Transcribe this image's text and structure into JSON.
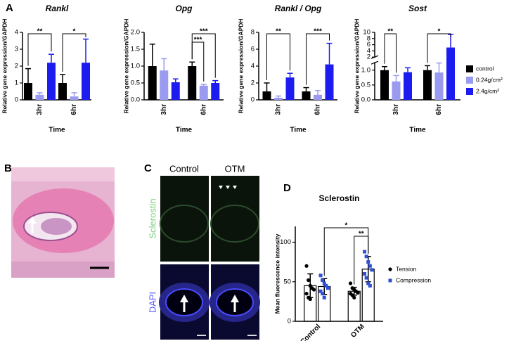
{
  "panel_labels": [
    "A",
    "B",
    "C",
    "D"
  ],
  "panel_c": {
    "columns": [
      "Control",
      "OTM"
    ],
    "rows": [
      "Sclerostin",
      "DAPI"
    ]
  },
  "chart_data": [
    {
      "type": "bar",
      "title": "Rankl",
      "y_label": "Relative gene expression/GAPDH",
      "x_label": "Time",
      "categories": [
        "3hr",
        "6hr"
      ],
      "series": [
        {
          "color": "#000000",
          "values": [
            1.0,
            1.0
          ],
          "errors": [
            0.85,
            0.5
          ]
        },
        {
          "color": "#9a9af0",
          "values": [
            0.3,
            0.2
          ],
          "errors": [
            0.12,
            0.22
          ]
        },
        {
          "color": "#1c1cf0",
          "values": [
            2.2,
            2.2
          ],
          "errors": [
            0.5,
            1.4
          ]
        }
      ],
      "ylim": [
        0,
        4
      ],
      "yticks": [
        0,
        1,
        2,
        3,
        4
      ],
      "annotations": [
        {
          "text": "**",
          "from": [
            0,
            0
          ],
          "to": [
            0,
            2
          ]
        },
        {
          "text": "*",
          "from": [
            1,
            0
          ],
          "to": [
            1,
            2
          ]
        }
      ]
    },
    {
      "type": "bar",
      "title": "Opg",
      "y_label": "Relative gene expression/GAPDH",
      "x_label": "Time",
      "categories": [
        "3hr",
        "6hr"
      ],
      "series": [
        {
          "color": "#000000",
          "values": [
            1.0,
            1.0
          ],
          "errors": [
            0.65,
            0.12
          ]
        },
        {
          "color": "#9a9af0",
          "values": [
            0.87,
            0.42
          ],
          "errors": [
            0.35,
            0.04
          ]
        },
        {
          "color": "#1c1cf0",
          "values": [
            0.52,
            0.5
          ],
          "errors": [
            0.1,
            0.07
          ]
        }
      ],
      "ylim": [
        0,
        2
      ],
      "yticks": [
        {
          "value": 0,
          "label": "0.0"
        },
        {
          "value": 0.5,
          "label": "0.5"
        },
        {
          "value": 1,
          "label": "1.0"
        },
        {
          "value": 1.5,
          "label": "1.5"
        },
        {
          "value": 2,
          "label": "2.0"
        }
      ],
      "annotations": [
        {
          "text": "***",
          "from": [
            1,
            0
          ],
          "to": [
            1,
            2
          ]
        },
        {
          "text": "***",
          "from": [
            1,
            0
          ],
          "to": [
            1,
            1
          ]
        }
      ]
    },
    {
      "type": "bar",
      "title": "Rankl / Opg",
      "y_label": "Relative gene expression/GAPDH",
      "x_label": "Time",
      "categories": [
        "3hr",
        "6hr"
      ],
      "series": [
        {
          "color": "#000000",
          "values": [
            1.0,
            1.0
          ],
          "errors": [
            1.0,
            0.45
          ]
        },
        {
          "color": "#9a9af0",
          "values": [
            0.25,
            0.6
          ],
          "errors": [
            0.2,
            0.5
          ]
        },
        {
          "color": "#1c1cf0",
          "values": [
            2.65,
            4.2
          ],
          "errors": [
            0.5,
            2.5
          ]
        }
      ],
      "ylim": [
        0,
        8
      ],
      "yticks": [
        0,
        2,
        4,
        6,
        8
      ],
      "annotations": [
        {
          "text": "**",
          "from": [
            0,
            0
          ],
          "to": [
            0,
            2
          ]
        },
        {
          "text": "***",
          "from": [
            1,
            0
          ],
          "to": [
            1,
            2
          ]
        }
      ]
    },
    {
      "type": "bar",
      "title": "Sost",
      "y_label": "Relative gene expression/GAPDH",
      "x_label": "Time",
      "categories": [
        "3hr",
        "6hr"
      ],
      "series": [
        {
          "name": "control",
          "color": "#000000",
          "values": [
            1.0,
            1.0
          ],
          "errors": [
            0.12,
            0.15
          ]
        },
        {
          "name": "0.24g/cm²",
          "color": "#9a9af0",
          "values": [
            0.62,
            0.92
          ],
          "errors": [
            0.2,
            0.32
          ]
        },
        {
          "name": "2.4g/cm²",
          "color": "#1c1cf0",
          "values": [
            0.93,
            5.1
          ],
          "errors": [
            0.15,
            4.2
          ]
        }
      ],
      "ylim": [
        0,
        10
      ],
      "ybreak": [
        1.25,
        2
      ],
      "yticks": [
        {
          "value": 0,
          "label": "0.0"
        },
        {
          "value": 0.5,
          "label": "0.5"
        },
        {
          "value": 1,
          "label": "1.0"
        },
        2,
        4,
        6,
        8,
        10
      ],
      "legend": "right",
      "annotations": [
        {
          "text": "**",
          "from": [
            0,
            0
          ],
          "to": [
            0,
            1
          ]
        },
        {
          "text": "*",
          "from": [
            1,
            0
          ],
          "to": [
            1,
            2
          ]
        }
      ]
    },
    {
      "type": "bar",
      "title": "Sclerostin",
      "y_label": "Mean fluorescence intensity",
      "categories": [
        "Control",
        "OTM"
      ],
      "series": [
        {
          "name": "Tension",
          "color": "#000000",
          "marker": "circle",
          "values": [
            45,
            38
          ],
          "errors": [
            15,
            5
          ],
          "points": [
            [
              70,
              52,
              45,
              42,
              40,
              35,
              30,
              28
            ],
            [
              48,
              42,
              40,
              38,
              36,
              35,
              33,
              30
            ]
          ]
        },
        {
          "name": "Compression",
          "color": "#2f4fd6",
          "marker": "square",
          "values": [
            44,
            66
          ],
          "errors": [
            10,
            16
          ],
          "points": [
            [
              58,
              52,
              48,
              45,
              42,
              38,
              35,
              30
            ],
            [
              88,
              82,
              75,
              70,
              65,
              60,
              55,
              48,
              45
            ]
          ]
        }
      ],
      "ylim": [
        0,
        120
      ],
      "yticks": [
        0,
        50,
        100
      ],
      "legend": "right",
      "annotations": [
        {
          "text": "*",
          "from": [
            0,
            1
          ],
          "to": [
            1,
            1
          ]
        },
        {
          "text": "**",
          "from": [
            1,
            0
          ],
          "to": [
            1,
            1
          ]
        }
      ]
    }
  ]
}
